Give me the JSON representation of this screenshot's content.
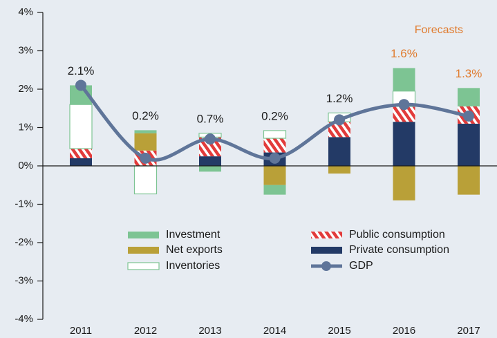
{
  "chart_data": {
    "type": "bar",
    "annotation": "Forecasts",
    "categories": [
      "2011",
      "2012",
      "2013",
      "2014",
      "2015",
      "2016",
      "2017"
    ],
    "series": [
      {
        "name": "Investment",
        "color": "#7dc493",
        "values": [
          0.5,
          0.08,
          -0.15,
          -0.25,
          0,
          0.6,
          0.48
        ]
      },
      {
        "name": "Net exports",
        "color": "#b9a038",
        "values": [
          0,
          0.45,
          0,
          -0.5,
          -0.2,
          -0.9,
          -0.75
        ]
      },
      {
        "name": "Inventories",
        "color": "#ffffff",
        "values": [
          1.15,
          -0.73,
          0.1,
          0.2,
          0.23,
          0.4,
          0
        ]
      },
      {
        "name": "Public consumption",
        "color": "#e23b3b",
        "values": [
          0.25,
          0.4,
          0.5,
          0.37,
          0.4,
          0.4,
          0.45
        ]
      },
      {
        "name": "Private consumption",
        "color": "#233a66",
        "values": [
          0.2,
          0,
          0.25,
          0.35,
          0.75,
          1.15,
          1.1
        ]
      },
      {
        "name": "GDP",
        "type": "line",
        "color": "#5f7599",
        "values": [
          2.1,
          0.2,
          0.7,
          0.2,
          1.2,
          1.6,
          1.3
        ],
        "value_labels": [
          "2.1%",
          "0.2%",
          "0.7%",
          "0.2%",
          "1.2%",
          "1.6%",
          "1.3%"
        ]
      }
    ],
    "ylim": [
      -4,
      4
    ],
    "yticks": [
      {
        "value": -4,
        "label": "-4%"
      },
      {
        "value": -3,
        "label": "-3%"
      },
      {
        "value": -2,
        "label": "-2%"
      },
      {
        "value": -1,
        "label": "-1%"
      },
      {
        "value": 0,
        "label": "0%"
      },
      {
        "value": 1,
        "label": "1%"
      },
      {
        "value": 2,
        "label": "2%"
      },
      {
        "value": 3,
        "label": "3%"
      },
      {
        "value": 4,
        "label": "4%"
      }
    ],
    "forecast_color": "#e07b2e"
  }
}
